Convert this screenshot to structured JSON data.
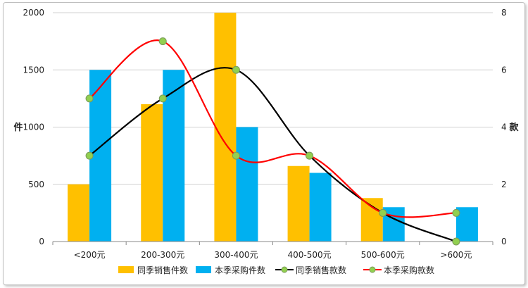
{
  "chart_data": {
    "type": "bar",
    "categories": [
      "<200元",
      "200-300元",
      "300-400元",
      "400-500元",
      "500-600元",
      ">600元"
    ],
    "y_left": {
      "label": "件",
      "range": [
        0,
        2000
      ],
      "ticks": [
        0,
        500,
        1000,
        1500,
        2000
      ]
    },
    "y_right": {
      "label": "款",
      "range": [
        0,
        8
      ],
      "ticks": [
        0,
        2,
        4,
        6,
        8
      ]
    },
    "grid": true,
    "legend_position": "bottom",
    "series": [
      {
        "name": "同季销售件数",
        "kind": "bar",
        "axis": "left",
        "color": "#FFC000",
        "values": [
          500,
          1200,
          2000,
          660,
          380,
          0
        ]
      },
      {
        "name": "本季采购件数",
        "kind": "bar",
        "axis": "left",
        "color": "#00B0F0",
        "values": [
          1500,
          1500,
          1000,
          600,
          300,
          300
        ]
      },
      {
        "name": "同季销售款数",
        "kind": "line",
        "axis": "right",
        "color": "#000000",
        "marker_color": "#92D050",
        "values": [
          3,
          5,
          6,
          3,
          1,
          0
        ]
      },
      {
        "name": "本季采购款数",
        "kind": "line",
        "axis": "right",
        "color": "#FF0000",
        "marker_color": "#92D050",
        "values": [
          5,
          7,
          3,
          3,
          1,
          1
        ]
      }
    ]
  }
}
